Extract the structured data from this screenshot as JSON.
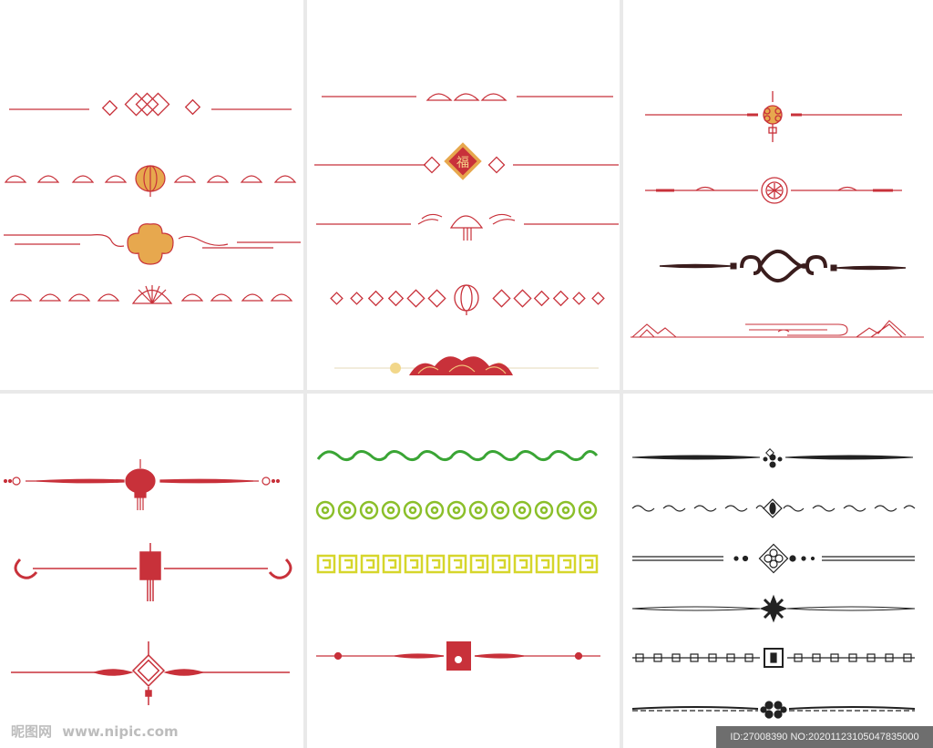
{
  "panels": [
    "red-lattice-dividers",
    "red-ornament-dividers",
    "mixed-knot-dividers",
    "red-knot-dividers",
    "green-yellow-scroll-dividers",
    "black-ornament-dividers"
  ],
  "fu_character": "福",
  "watermark": {
    "site_cn": "昵图网",
    "site_url": "www.nipic.com",
    "image_id": "ID:27008390 NO:20201123105047835000"
  },
  "colors": {
    "red": "#c8313a",
    "gold": "#e7a84e",
    "green": "#3aa535",
    "lime": "#8bbf2a",
    "yellow": "#d6d62b",
    "dark": "#3a1d1d",
    "black": "#222222"
  }
}
